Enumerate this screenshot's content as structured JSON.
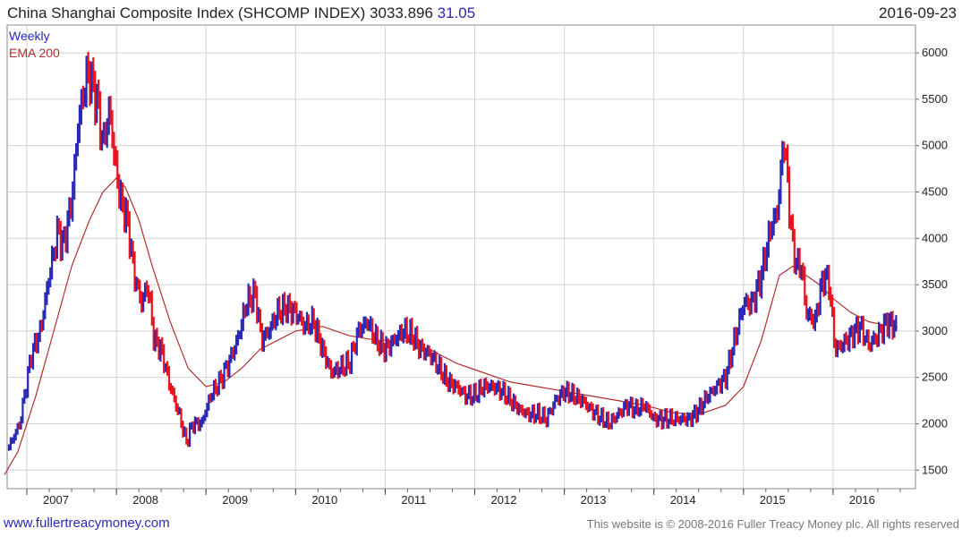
{
  "header": {
    "title": "China Shanghai Composite Index (SHCOMP INDEX) 3033.896",
    "change": "31.05",
    "date": "2016-09-23"
  },
  "footer": {
    "left": "www.fullertreacymoney.com",
    "right": "This website is © 2008-2016 Fuller Treacy Money plc. All rights reserved"
  },
  "chart_data": {
    "type": "line",
    "title": "China Shanghai Composite Index (SHCOMP INDEX) 3033.896 31.05",
    "xlabel": "",
    "ylabel": "",
    "xlim": [
      2006.78,
      2016.92
    ],
    "ylim": [
      1300,
      6300
    ],
    "y_ticks": [
      1500,
      2000,
      2500,
      3000,
      3500,
      4000,
      4500,
      5000,
      5500,
      6000
    ],
    "x_ticks": [
      {
        "label": "2007",
        "x": 2007.0
      },
      {
        "label": "2008",
        "x": 2008.0
      },
      {
        "label": "2009",
        "x": 2009.0
      },
      {
        "label": "2010",
        "x": 2010.0
      },
      {
        "label": "2011",
        "x": 2011.0
      },
      {
        "label": "2012",
        "x": 2012.0
      },
      {
        "label": "2013",
        "x": 2013.0
      },
      {
        "label": "2014",
        "x": 2014.0
      },
      {
        "label": "2015",
        "x": 2015.0
      },
      {
        "label": "2016",
        "x": 2016.0
      }
    ],
    "grid": true,
    "legend_position": "top-left",
    "series": [
      {
        "name": "Weekly",
        "style": "candles",
        "up_color": "#2a2ab8",
        "down_color": "#e8141e",
        "x": [
          2006.8,
          2006.92,
          2007.05,
          2007.15,
          2007.25,
          2007.35,
          2007.4,
          2007.5,
          2007.58,
          2007.68,
          2007.78,
          2007.85,
          2007.92,
          2008.0,
          2008.05,
          2008.12,
          2008.2,
          2008.28,
          2008.35,
          2008.42,
          2008.5,
          2008.6,
          2008.7,
          2008.78,
          2008.85,
          2008.95,
          2009.05,
          2009.15,
          2009.25,
          2009.35,
          2009.45,
          2009.55,
          2009.62,
          2009.7,
          2009.8,
          2009.9,
          2010.0,
          2010.1,
          2010.2,
          2010.3,
          2010.4,
          2010.5,
          2010.6,
          2010.7,
          2010.8,
          2010.9,
          2011.0,
          2011.1,
          2011.2,
          2011.3,
          2011.4,
          2011.5,
          2011.6,
          2011.7,
          2011.8,
          2011.9,
          2012.0,
          2012.1,
          2012.2,
          2012.3,
          2012.4,
          2012.5,
          2012.6,
          2012.7,
          2012.8,
          2012.9,
          2013.0,
          2013.1,
          2013.2,
          2013.3,
          2013.42,
          2013.5,
          2013.6,
          2013.7,
          2013.8,
          2013.9,
          2014.0,
          2014.1,
          2014.2,
          2014.3,
          2014.4,
          2014.5,
          2014.6,
          2014.7,
          2014.8,
          2014.9,
          2015.0,
          2015.1,
          2015.2,
          2015.3,
          2015.38,
          2015.45,
          2015.5,
          2015.55,
          2015.6,
          2015.65,
          2015.7,
          2015.8,
          2015.85,
          2015.9,
          2015.96,
          2016.02,
          2016.1,
          2016.2,
          2016.3,
          2016.4,
          2016.5,
          2016.6,
          2016.72
        ],
        "values": [
          1750,
          2000,
          2750,
          3000,
          3600,
          4100,
          3900,
          4400,
          5300,
          5800,
          5500,
          5000,
          5400,
          4700,
          4400,
          4200,
          3600,
          3300,
          3500,
          2900,
          2800,
          2400,
          2100,
          1800,
          2000,
          2000,
          2300,
          2450,
          2650,
          2900,
          3300,
          3400,
          2900,
          3000,
          3200,
          3250,
          3200,
          3050,
          3100,
          2800,
          2550,
          2600,
          2650,
          3000,
          3100,
          2900,
          2800,
          2900,
          3000,
          2950,
          2800,
          2750,
          2600,
          2450,
          2400,
          2300,
          2300,
          2400,
          2400,
          2350,
          2250,
          2150,
          2100,
          2100,
          2050,
          2250,
          2350,
          2300,
          2250,
          2150,
          2050,
          2000,
          2100,
          2200,
          2150,
          2200,
          2050,
          2050,
          2050,
          2050,
          2050,
          2150,
          2300,
          2400,
          2500,
          2900,
          3300,
          3300,
          3600,
          4100,
          4300,
          5100,
          4500,
          3900,
          3700,
          3700,
          3200,
          3100,
          3400,
          3600,
          3500,
          2800,
          2850,
          2950,
          3050,
          2850,
          2950,
          3100,
          3033
        ]
      },
      {
        "name": "EMA 200",
        "style": "line",
        "color": "#b03030",
        "x": [
          2006.75,
          2006.9,
          2007.1,
          2007.3,
          2007.5,
          2007.7,
          2007.85,
          2008.0,
          2008.1,
          2008.25,
          2008.4,
          2008.6,
          2008.8,
          2009.0,
          2009.2,
          2009.4,
          2009.6,
          2009.8,
          2010.0,
          2010.3,
          2010.6,
          2010.9,
          2011.2,
          2011.5,
          2011.8,
          2012.1,
          2012.4,
          2012.7,
          2013.0,
          2013.3,
          2013.6,
          2013.9,
          2014.2,
          2014.5,
          2014.8,
          2015.0,
          2015.2,
          2015.4,
          2015.55,
          2015.7,
          2015.85,
          2016.0,
          2016.2,
          2016.4,
          2016.6,
          2016.72
        ],
        "values": [
          1450,
          1700,
          2300,
          3000,
          3700,
          4200,
          4500,
          4650,
          4550,
          4200,
          3700,
          3100,
          2600,
          2400,
          2450,
          2600,
          2800,
          2900,
          3000,
          3050,
          2950,
          2900,
          2900,
          2800,
          2650,
          2550,
          2450,
          2400,
          2350,
          2300,
          2250,
          2200,
          2120,
          2100,
          2200,
          2400,
          2900,
          3600,
          3700,
          3600,
          3500,
          3350,
          3200,
          3100,
          3060,
          3040
        ]
      }
    ]
  }
}
